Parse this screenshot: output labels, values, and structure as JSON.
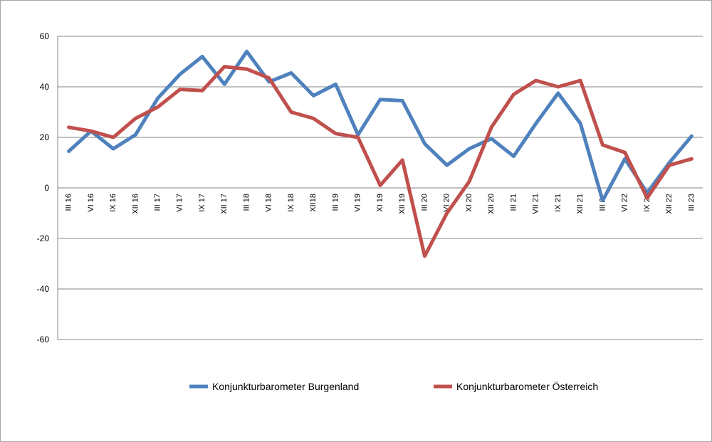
{
  "chart_data": {
    "type": "line",
    "categories": [
      "III 16",
      "VI 16",
      "IX 16",
      "XII 16",
      "III 17",
      "VI 17",
      "IX 17",
      "XII 17",
      "III 18",
      "VI 18",
      "IX 18",
      "XII18",
      "III 19",
      "VI 19",
      "XI 19",
      "XII 19",
      "III 20",
      "VI 20",
      "XI 20",
      "XII 20",
      "III 21",
      "VII 21",
      "IX 21",
      "XII 21",
      "III 22",
      "VI 22",
      "IX 22",
      "XII 22",
      "III 23"
    ],
    "series": [
      {
        "name": "Konjunkturbarometer Burgenland",
        "color": "#4f81bd",
        "values": [
          14.5,
          22.5,
          15.5,
          21,
          35.5,
          45,
          52,
          41,
          54,
          42,
          45.5,
          36.5,
          41,
          21,
          35,
          34.5,
          17.5,
          9,
          15.5,
          19.5,
          12.5,
          25.5,
          37.5,
          25.5,
          -5,
          11.5,
          -2,
          10,
          20.5
        ]
      },
      {
        "name": "Konjunkturbarometer Österreich",
        "color": "#c0504d",
        "values": [
          24,
          22.5,
          20,
          27.5,
          32,
          39,
          38.5,
          48,
          47,
          43.5,
          30,
          27.5,
          21.5,
          20,
          1,
          11,
          -27,
          -10,
          2.5,
          24,
          37,
          42.5,
          40,
          42.5,
          17,
          14,
          -4,
          9,
          11.5
        ]
      }
    ],
    "ylim": [
      -60,
      60
    ],
    "yticks": [
      "60",
      "40",
      "20",
      "0",
      "-20",
      "-40",
      "-60"
    ],
    "grid": true,
    "legend_position": "bottom"
  }
}
